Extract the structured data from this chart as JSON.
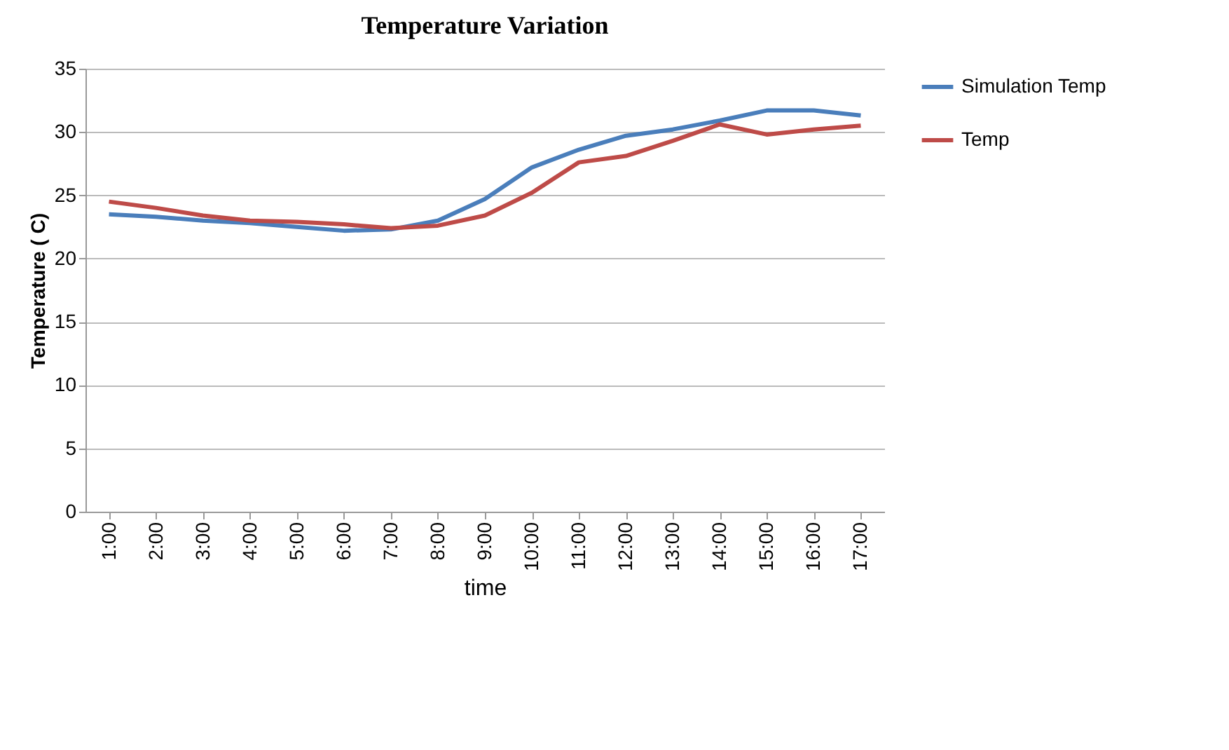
{
  "chart_data": {
    "type": "line",
    "title": "Temperature Variation",
    "xlabel": "time",
    "ylabel": "Temperature ( C)",
    "categories": [
      "1:00",
      "2:00",
      "3:00",
      "4:00",
      "5:00",
      "6:00",
      "7:00",
      "8:00",
      "9:00",
      "10:00",
      "11:00",
      "12:00",
      "13:00",
      "14:00",
      "15:00",
      "16:00",
      "17:00"
    ],
    "series": [
      {
        "name": "Simulation Temp",
        "color": "#4a7ebb",
        "values": [
          23.5,
          23.3,
          23.0,
          22.8,
          22.5,
          22.2,
          22.3,
          23.0,
          24.7,
          27.2,
          28.6,
          29.7,
          30.2,
          30.9,
          31.7,
          31.7,
          31.3
        ]
      },
      {
        "name": "Temp",
        "color": "#be4b48",
        "values": [
          24.5,
          24.0,
          23.4,
          23.0,
          22.9,
          22.7,
          22.4,
          22.6,
          23.4,
          25.2,
          27.6,
          28.1,
          29.3,
          30.6,
          29.8,
          30.2,
          30.5
        ]
      }
    ],
    "ylim": [
      0,
      35
    ],
    "yticks": [
      0,
      5,
      10,
      15,
      20,
      25,
      30,
      35
    ],
    "grid": "y",
    "legend": "right",
    "marker": "none",
    "line_style": "solid"
  }
}
